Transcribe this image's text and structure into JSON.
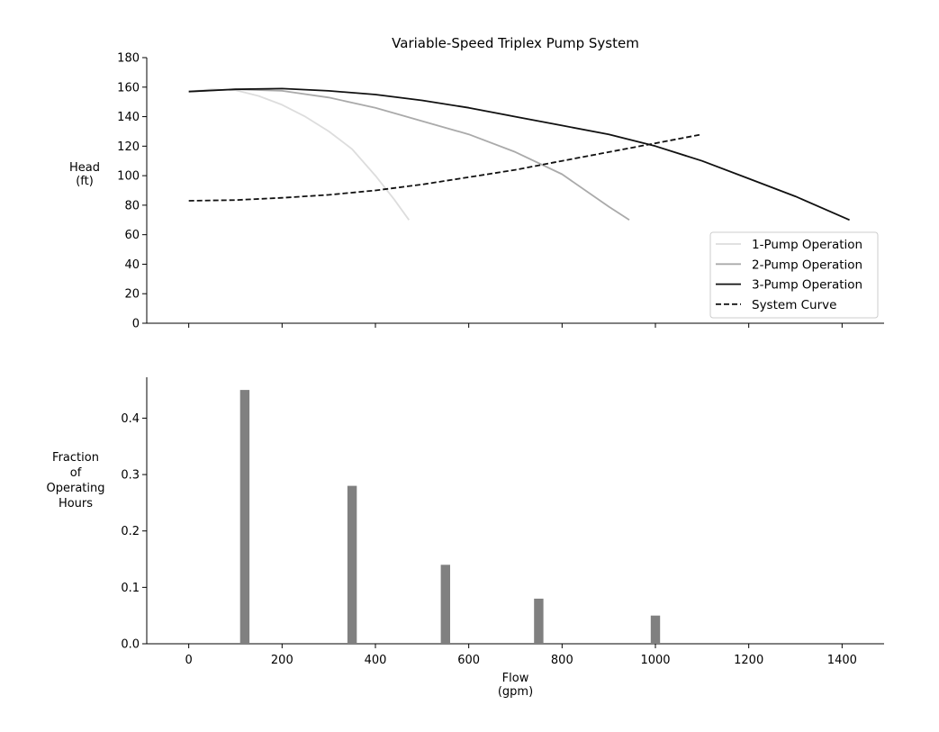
{
  "chart_data": [
    {
      "type": "line",
      "title": "Variable-Speed Triplex Pump System",
      "xlabel": "",
      "ylabel": [
        "Head",
        "(ft)"
      ],
      "xlim": [
        -90,
        1490
      ],
      "ylim": [
        0,
        180
      ],
      "yticks": [
        0,
        20,
        40,
        60,
        80,
        100,
        120,
        140,
        160,
        180
      ],
      "xticks": [
        0,
        200,
        400,
        600,
        800,
        1000,
        1200,
        1400
      ],
      "show_x_tick_labels": false,
      "grid": false,
      "legend": "lower-right",
      "series": [
        {
          "name": "1-Pump Operation",
          "color": "#dddddd",
          "dash": "solid",
          "x": [
            0,
            50,
            100,
            150,
            200,
            250,
            300,
            350,
            400,
            440,
            472
          ],
          "y": [
            157,
            158.5,
            158,
            154,
            148,
            140,
            130,
            118,
            100,
            84,
            70
          ]
        },
        {
          "name": "2-Pump Operation",
          "color": "#aaaaaa",
          "dash": "solid",
          "x": [
            0,
            100,
            200,
            300,
            400,
            500,
            600,
            700,
            800,
            900,
            944
          ],
          "y": [
            157,
            158.5,
            157.5,
            153,
            146,
            137,
            128,
            116,
            101,
            79,
            70
          ]
        },
        {
          "name": "3-Pump Operation",
          "color": "#111111",
          "dash": "solid",
          "x": [
            0,
            100,
            200,
            300,
            400,
            500,
            600,
            700,
            800,
            900,
            1000,
            1100,
            1200,
            1300,
            1416
          ],
          "y": [
            157,
            158.5,
            159,
            157.5,
            155,
            151,
            146,
            140,
            134,
            128,
            120,
            110,
            98,
            86,
            70
          ]
        },
        {
          "name": "System Curve",
          "color": "#111111",
          "dash": "dashed",
          "x": [
            0,
            100,
            200,
            300,
            400,
            500,
            600,
            700,
            800,
            900,
            1000,
            1100
          ],
          "y": [
            83,
            83.5,
            85,
            87,
            90,
            94,
            99,
            104,
            110,
            116,
            122,
            128
          ]
        }
      ]
    },
    {
      "type": "bar",
      "title": "",
      "xlabel": [
        "Flow",
        "(gpm)"
      ],
      "ylabel": [
        "Fraction",
        "of",
        "Operating",
        "Hours"
      ],
      "xlim": [
        -90,
        1490
      ],
      "ylim": [
        0,
        0.4725
      ],
      "yticks": [
        0.0,
        0.1,
        0.2,
        0.3,
        0.4
      ],
      "xticks": [
        0,
        200,
        400,
        600,
        800,
        1000,
        1200,
        1400
      ],
      "grid": false,
      "bar_color": "#808080",
      "x": [
        120,
        350,
        550,
        750,
        1000
      ],
      "values": [
        0.45,
        0.28,
        0.14,
        0.08,
        0.05
      ]
    }
  ]
}
